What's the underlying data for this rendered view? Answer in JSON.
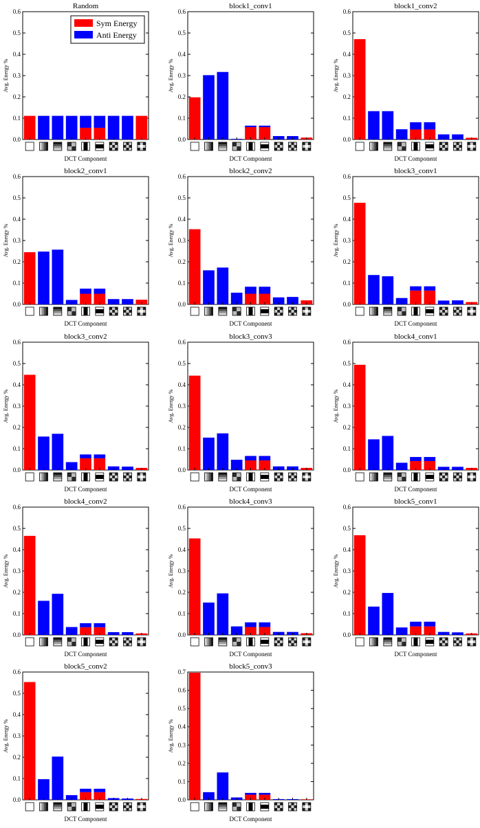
{
  "figure": {
    "background": "#ffffff"
  },
  "colors": {
    "sym": "#ff0000",
    "anti": "#0000ff",
    "axis": "#000000"
  },
  "legend": {
    "placement": "top-right of first panel",
    "sym_label": "Sym Energy",
    "anti_label": "Anti Energy"
  },
  "common": {
    "xlabel": "DCT Component",
    "ylabel": "Avg. Energy %",
    "yticks": [
      "0.0",
      "0.1",
      "0.2",
      "0.3",
      "0.4",
      "0.5",
      "0.6"
    ],
    "yticks_07": [
      "0.0",
      "0.1",
      "0.2",
      "0.3",
      "0.4",
      "0.5",
      "0.6",
      "0.7"
    ],
    "dct_components": [
      "dc-flat",
      "horizontal-gradient",
      "vertical-gradient",
      "diag-checker",
      "vertical-stripes",
      "horizontal-stripes",
      "checker-a",
      "checker-b",
      "checker-c"
    ]
  },
  "chart_data": [
    {
      "type": "bar",
      "stacked": true,
      "title": "Random",
      "ylim": [
        0,
        0.6
      ],
      "series": [
        {
          "name": "Sym Energy",
          "values": [
            0.111,
            0,
            0,
            0,
            0.055,
            0.055,
            0,
            0,
            0.111
          ]
        },
        {
          "name": "Anti Energy",
          "values": [
            0,
            0.111,
            0.111,
            0.111,
            0.056,
            0.056,
            0.111,
            0.111,
            0
          ]
        }
      ]
    },
    {
      "type": "bar",
      "stacked": true,
      "title": "block1_conv1",
      "ylim": [
        0,
        0.6
      ],
      "series": [
        {
          "name": "Sym Energy",
          "values": [
            0.198,
            0,
            0,
            0,
            0.058,
            0.058,
            0,
            0,
            0.009
          ]
        },
        {
          "name": "Anti Energy",
          "values": [
            0,
            0.302,
            0.317,
            0.003,
            0.007,
            0.007,
            0.016,
            0.016,
            0
          ]
        }
      ]
    },
    {
      "type": "bar",
      "stacked": true,
      "title": "block1_conv2",
      "ylim": [
        0,
        0.6
      ],
      "series": [
        {
          "name": "Sym Energy",
          "values": [
            0.471,
            0,
            0,
            0,
            0.047,
            0.047,
            0,
            0,
            0.008
          ]
        },
        {
          "name": "Anti Energy",
          "values": [
            0,
            0.133,
            0.133,
            0.048,
            0.034,
            0.034,
            0.024,
            0.024,
            0
          ]
        }
      ]
    },
    {
      "type": "bar",
      "stacked": true,
      "title": "block2_conv1",
      "ylim": [
        0,
        0.6
      ],
      "series": [
        {
          "name": "Sym Energy",
          "values": [
            0.245,
            0,
            0,
            0,
            0.05,
            0.05,
            0,
            0,
            0.022
          ]
        },
        {
          "name": "Anti Energy",
          "values": [
            0,
            0.248,
            0.257,
            0.021,
            0.024,
            0.024,
            0.025,
            0.025,
            0
          ]
        }
      ]
    },
    {
      "type": "bar",
      "stacked": true,
      "title": "block2_conv2",
      "ylim": [
        0,
        0.6
      ],
      "series": [
        {
          "name": "Sym Energy",
          "values": [
            0.353,
            0,
            0,
            0,
            0.05,
            0.05,
            0,
            0,
            0.019
          ]
        },
        {
          "name": "Anti Energy",
          "values": [
            0,
            0.16,
            0.173,
            0.055,
            0.033,
            0.033,
            0.033,
            0.035,
            0
          ]
        }
      ]
    },
    {
      "type": "bar",
      "stacked": true,
      "title": "block3_conv1",
      "ylim": [
        0,
        0.6
      ],
      "series": [
        {
          "name": "Sym Energy",
          "values": [
            0.477,
            0,
            0,
            0,
            0.065,
            0.065,
            0,
            0,
            0.011
          ]
        },
        {
          "name": "Anti Energy",
          "values": [
            0,
            0.138,
            0.132,
            0.03,
            0.02,
            0.02,
            0.018,
            0.019,
            0
          ]
        }
      ]
    },
    {
      "type": "bar",
      "stacked": true,
      "title": "block3_conv2",
      "ylim": [
        0,
        0.6
      ],
      "series": [
        {
          "name": "Sym Energy",
          "values": [
            0.447,
            0,
            0,
            0,
            0.055,
            0.055,
            0,
            0,
            0.01
          ]
        },
        {
          "name": "Anti Energy",
          "values": [
            0,
            0.157,
            0.17,
            0.037,
            0.018,
            0.018,
            0.017,
            0.016,
            0
          ]
        }
      ]
    },
    {
      "type": "bar",
      "stacked": true,
      "title": "block3_conv3",
      "ylim": [
        0,
        0.6
      ],
      "series": [
        {
          "name": "Sym Energy",
          "values": [
            0.443,
            0,
            0,
            0,
            0.045,
            0.045,
            0,
            0,
            0.01
          ]
        },
        {
          "name": "Anti Energy",
          "values": [
            0,
            0.152,
            0.172,
            0.048,
            0.021,
            0.021,
            0.017,
            0.017,
            0
          ]
        }
      ]
    },
    {
      "type": "bar",
      "stacked": true,
      "title": "block4_conv1",
      "ylim": [
        0,
        0.6
      ],
      "series": [
        {
          "name": "Sym Energy",
          "values": [
            0.494,
            0,
            0,
            0,
            0.042,
            0.042,
            0,
            0,
            0.01
          ]
        },
        {
          "name": "Anti Energy",
          "values": [
            0,
            0.144,
            0.16,
            0.034,
            0.019,
            0.019,
            0.015,
            0.015,
            0
          ]
        }
      ]
    },
    {
      "type": "bar",
      "stacked": true,
      "title": "block4_conv2",
      "ylim": [
        0,
        0.6
      ],
      "series": [
        {
          "name": "Sym Energy",
          "values": [
            0.465,
            0,
            0,
            0,
            0.036,
            0.036,
            0,
            0,
            0.007
          ]
        },
        {
          "name": "Anti Energy",
          "values": [
            0,
            0.16,
            0.193,
            0.037,
            0.019,
            0.019,
            0.013,
            0.013,
            0
          ]
        }
      ]
    },
    {
      "type": "bar",
      "stacked": true,
      "title": "block4_conv3",
      "ylim": [
        0,
        0.6
      ],
      "series": [
        {
          "name": "Sym Energy",
          "values": [
            0.453,
            0,
            0,
            0,
            0.037,
            0.037,
            0,
            0,
            0.008
          ]
        },
        {
          "name": "Anti Energy",
          "values": [
            0,
            0.152,
            0.195,
            0.04,
            0.022,
            0.022,
            0.014,
            0.014,
            0
          ]
        }
      ]
    },
    {
      "type": "bar",
      "stacked": true,
      "title": "block5_conv1",
      "ylim": [
        0,
        0.6
      ],
      "series": [
        {
          "name": "Sym Energy",
          "values": [
            0.468,
            0,
            0,
            0,
            0.04,
            0.04,
            0,
            0,
            0.007
          ]
        },
        {
          "name": "Anti Energy",
          "values": [
            0,
            0.133,
            0.197,
            0.035,
            0.022,
            0.022,
            0.014,
            0.012,
            0
          ]
        }
      ]
    },
    {
      "type": "bar",
      "stacked": true,
      "title": "block5_conv2",
      "ylim": [
        0,
        0.6
      ],
      "series": [
        {
          "name": "Sym Energy",
          "values": [
            0.553,
            0,
            0,
            0,
            0.036,
            0.036,
            0,
            0,
            0.004
          ]
        },
        {
          "name": "Anti Energy",
          "values": [
            0,
            0.097,
            0.203,
            0.022,
            0.016,
            0.016,
            0.008,
            0.006,
            0
          ]
        }
      ]
    },
    {
      "type": "bar",
      "stacked": true,
      "title": "block5_conv3",
      "ylim": [
        0,
        0.7
      ],
      "series": [
        {
          "name": "Sym Energy",
          "values": [
            0.696,
            0,
            0,
            0,
            0.028,
            0.028,
            0,
            0,
            0.003
          ]
        },
        {
          "name": "Anti Energy",
          "values": [
            0,
            0.042,
            0.15,
            0.013,
            0.01,
            0.01,
            0.004,
            0.004,
            0
          ]
        }
      ]
    }
  ]
}
